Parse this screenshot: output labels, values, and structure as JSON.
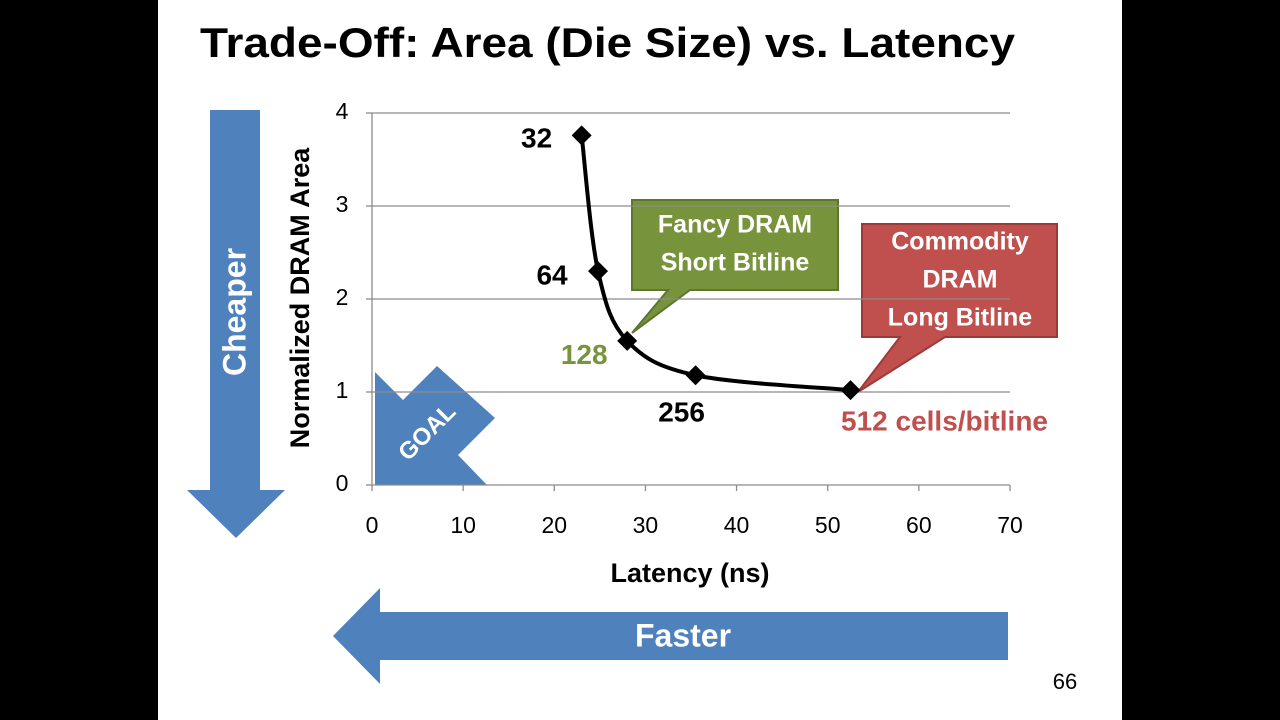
{
  "title": "Trade-Off: Area (Die Size) vs. Latency",
  "slide_number": 66,
  "arrows": {
    "cheaper": "Cheaper",
    "faster": "Faster",
    "goal": "GOAL"
  },
  "chart_data": {
    "type": "line",
    "x_label": "Latency (ns)",
    "y_label": "Normalized DRAM Area",
    "x": [
      23.0,
      24.8,
      28.0,
      35.5,
      52.5
    ],
    "values": [
      3.76,
      2.3,
      1.55,
      1.18,
      1.02
    ],
    "color": "#000000",
    "point_labels": [
      "32",
      "64",
      "128",
      "256",
      "512 cells/bitline"
    ],
    "point_label_colors": [
      "#000000",
      "#000000",
      "#77933c",
      "#000000",
      "#c0504d"
    ],
    "xlim": [
      0,
      70
    ],
    "xticks": [
      0,
      10,
      20,
      30,
      40,
      50,
      60,
      70
    ],
    "ylim": [
      0,
      4
    ],
    "yticks": [
      0,
      1,
      2,
      3,
      4
    ],
    "grid": true,
    "annotations": [
      {
        "lines": [
          "Fancy DRAM",
          "Short Bitline"
        ],
        "color": "#77933c"
      },
      {
        "lines": [
          "Commodity",
          "DRAM",
          "Long Bitline"
        ],
        "color": "#c0504d"
      }
    ]
  }
}
